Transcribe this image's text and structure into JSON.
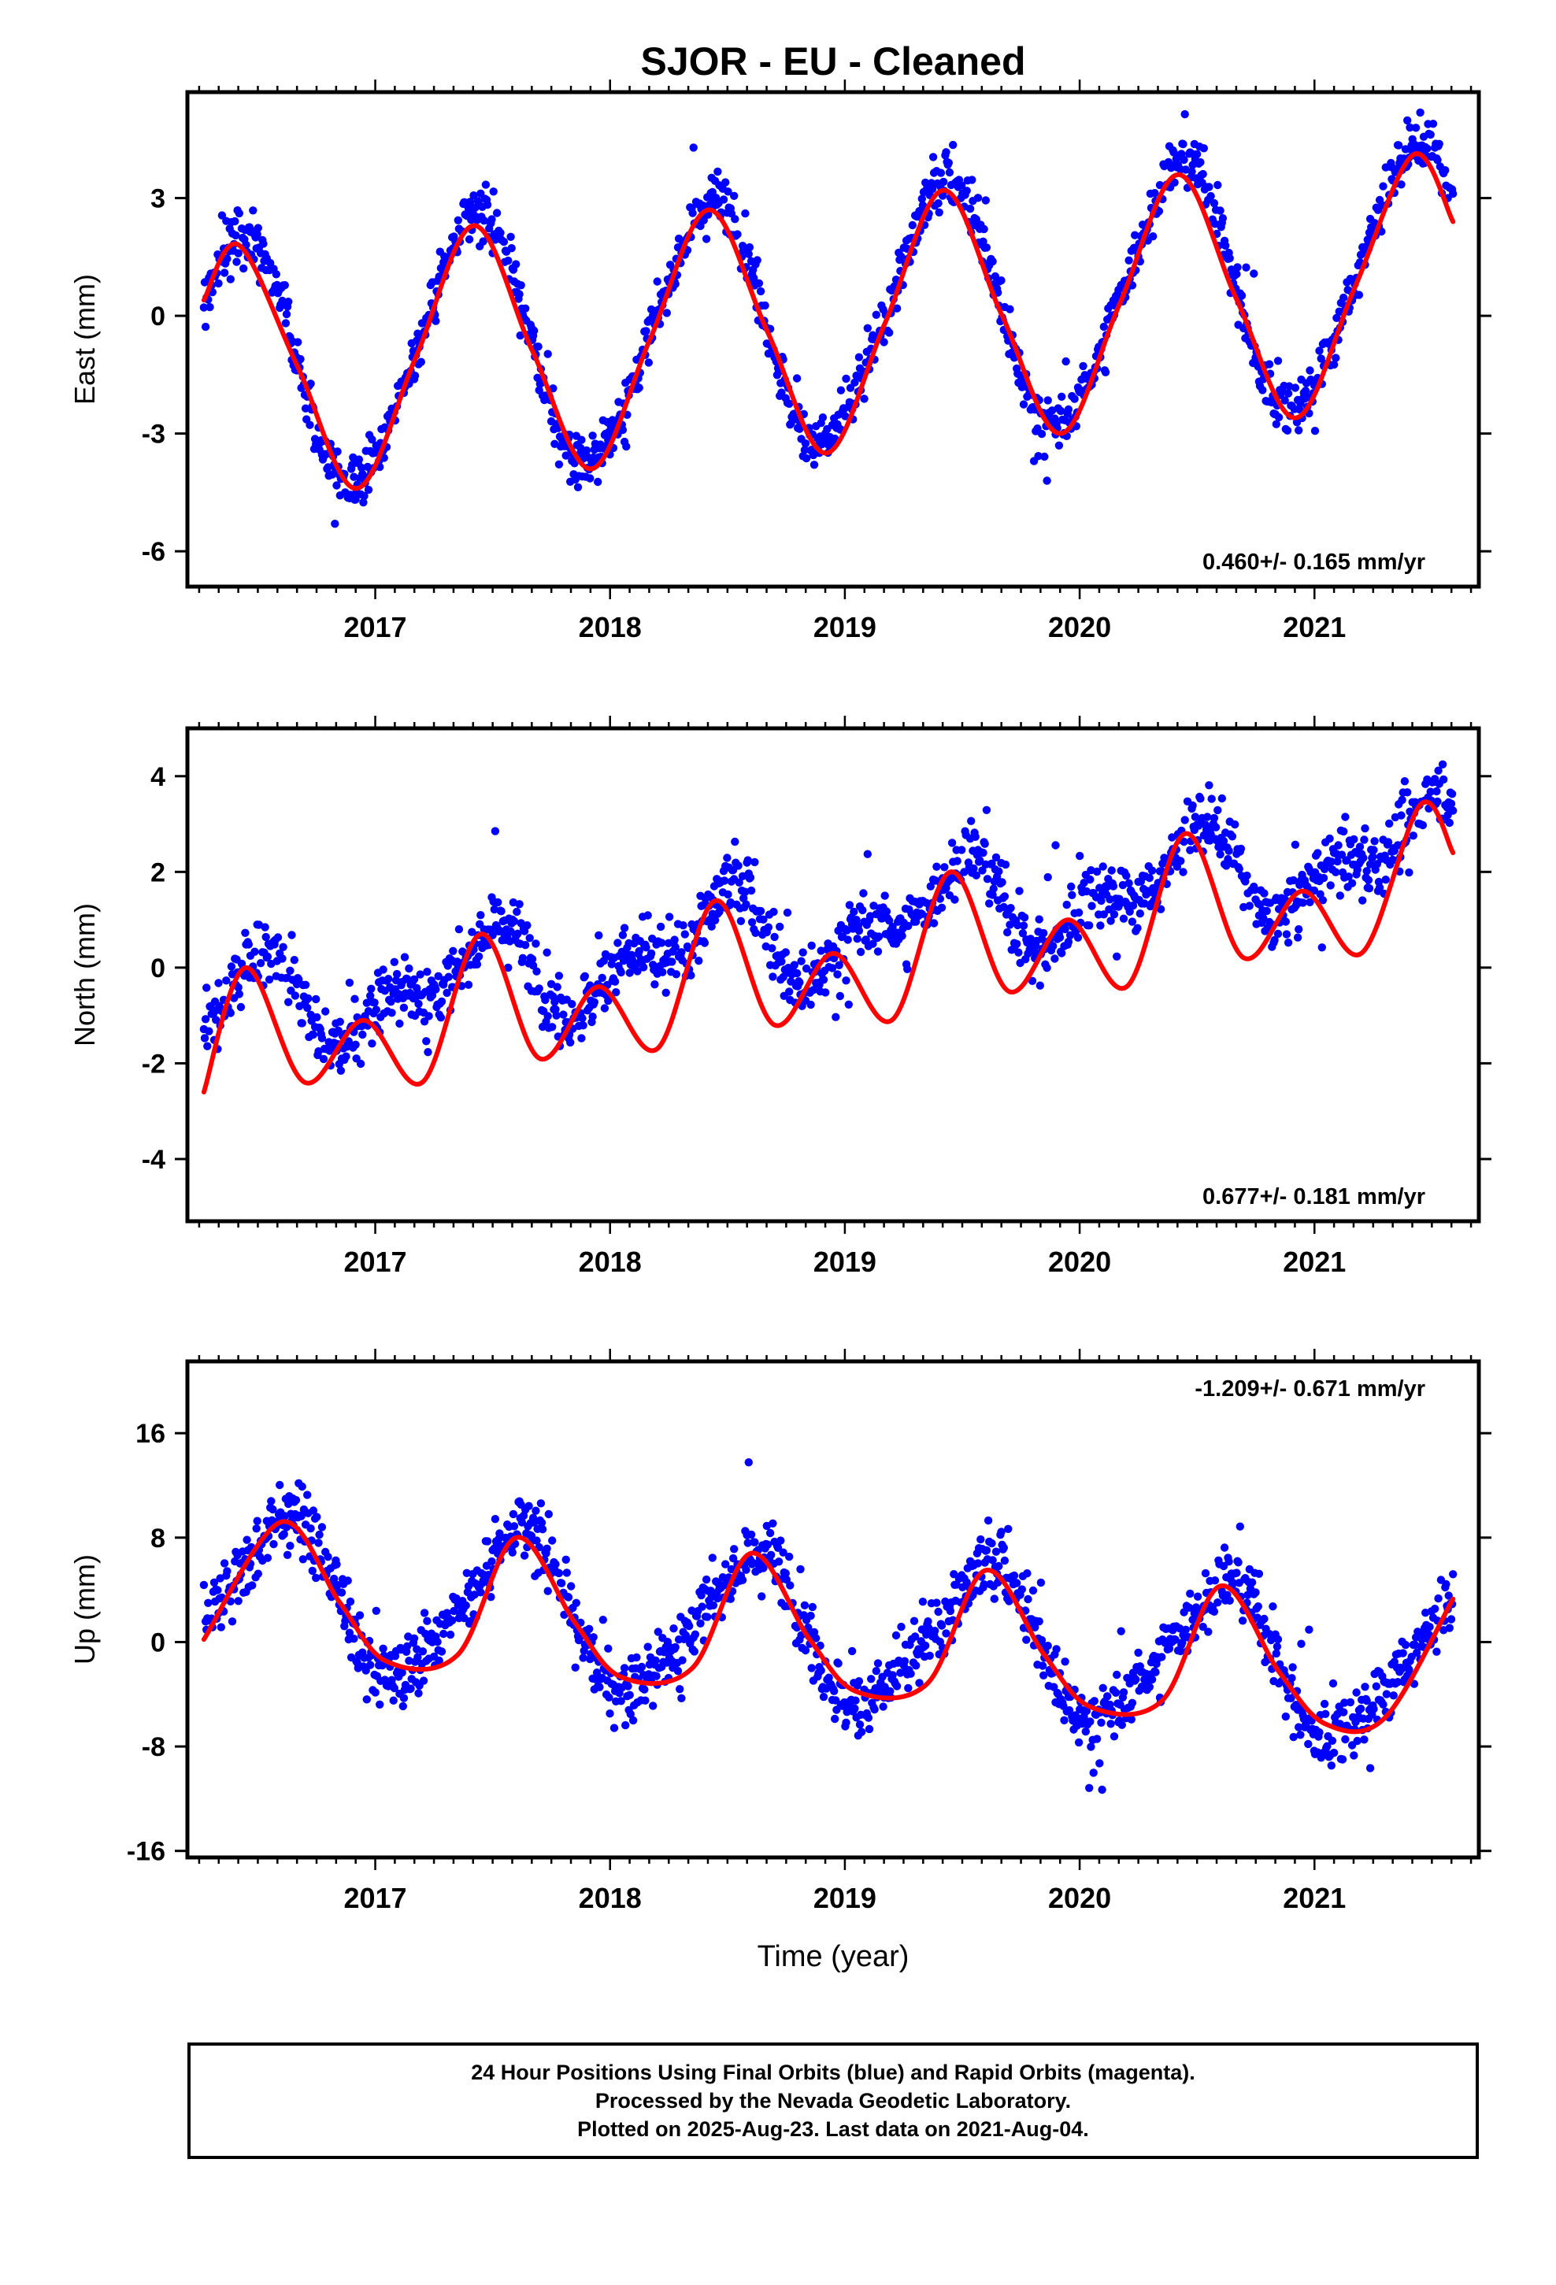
{
  "title": "SJOR  - EU - Cleaned",
  "colors": {
    "points": "#0000ff",
    "fit": "#ff0000",
    "frame": "#000000"
  },
  "chart_data": [
    {
      "type": "scatter",
      "ylabel": "East (mm)",
      "xlim": [
        2016.2,
        2021.7
      ],
      "ylim": [
        -6.9,
        5.7
      ],
      "yticks": [
        3,
        0,
        -3,
        -6
      ],
      "ytick_labels": [
        "3",
        "0",
        "-3",
        "-6"
      ],
      "xticks": [
        2017,
        2018,
        2019,
        2020,
        2021
      ],
      "xtick_labels": [
        "2017",
        "2018",
        "2019",
        "2020",
        "2021"
      ],
      "rate_label": "0.460+/- 0.165 mm/yr",
      "rate_position": "bottom-right",
      "series": [
        {
          "kind": "points",
          "color": "blue",
          "x_range": [
            2016.27,
            2021.59
          ],
          "trend": 0.46,
          "annual_amp": 3.2,
          "annual_peak": 2016.42,
          "semiannual_amp": 0.3,
          "offset": -1.3,
          "noise_sd": 0.85
        },
        {
          "kind": "fit",
          "color": "red",
          "x": [
            2016.27,
            2016.42,
            2016.67,
            2016.92,
            2017.17,
            2017.42,
            2017.67,
            2017.92,
            2018.17,
            2018.42,
            2018.67,
            2018.92,
            2019.17,
            2019.42,
            2019.67,
            2019.92,
            2020.17,
            2020.42,
            2020.67,
            2020.92,
            2021.17,
            2021.42,
            2021.59
          ],
          "y": [
            0.4,
            1.8,
            -1.3,
            -4.4,
            -1.1,
            2.3,
            -0.9,
            -3.9,
            -0.6,
            2.7,
            -0.4,
            -3.5,
            -0.2,
            3.2,
            0.0,
            -3.0,
            0.3,
            3.6,
            0.4,
            -2.6,
            0.7,
            4.1,
            2.4
          ]
        }
      ]
    },
    {
      "type": "scatter",
      "ylabel": "North (mm)",
      "xlim": [
        2016.2,
        2021.7
      ],
      "ylim": [
        -5.3,
        5.0
      ],
      "yticks": [
        4,
        2,
        0,
        -2,
        -4
      ],
      "ytick_labels": [
        "4",
        "2",
        "0",
        "-2",
        "-4"
      ],
      "xticks": [
        2017,
        2018,
        2019,
        2020,
        2021
      ],
      "xtick_labels": [
        "2017",
        "2018",
        "2019",
        "2020",
        "2021"
      ],
      "rate_label": "0.677+/- 0.181 mm/yr",
      "rate_position": "bottom-right",
      "series": [
        {
          "kind": "points",
          "color": "blue",
          "x_range": [
            2016.27,
            2021.59
          ],
          "trend": 0.677,
          "annual_amp": 0.75,
          "annual_peak": 2016.45,
          "semiannual_amp": 0.55,
          "offset": -1.0,
          "noise_sd": 0.85
        },
        {
          "kind": "fit",
          "color": "red",
          "x": [
            2016.27,
            2016.45,
            2016.7,
            2016.95,
            2017.2,
            2017.45,
            2017.7,
            2017.95,
            2018.2,
            2018.45,
            2018.7,
            2018.95,
            2019.2,
            2019.45,
            2019.7,
            2019.95,
            2020.2,
            2020.45,
            2020.7,
            2020.95,
            2021.2,
            2021.45,
            2021.59
          ],
          "y": [
            -2.6,
            0.0,
            -2.4,
            -1.1,
            -2.4,
            0.7,
            -1.9,
            -0.4,
            -1.7,
            1.4,
            -1.2,
            0.3,
            -1.1,
            2.0,
            -0.5,
            1.0,
            -0.4,
            2.8,
            0.2,
            1.6,
            0.3,
            3.4,
            2.4
          ]
        }
      ]
    },
    {
      "type": "scatter",
      "ylabel": "Up (mm)",
      "xlabel": "Time (year)",
      "xlim": [
        2016.2,
        2021.7
      ],
      "ylim": [
        -16.5,
        21.5
      ],
      "yticks": [
        16,
        8,
        0,
        -8,
        -16
      ],
      "ytick_labels": [
        "16",
        "8",
        "0",
        "-8",
        "-16"
      ],
      "xticks": [
        2017,
        2018,
        2019,
        2020,
        2021
      ],
      "xtick_labels": [
        "2017",
        "2018",
        "2019",
        "2020",
        "2021"
      ],
      "rate_label": "-1.209+/- 0.671 mm/yr",
      "rate_position": "top-right",
      "series": [
        {
          "kind": "points",
          "color": "blue",
          "x_range": [
            2016.27,
            2021.59
          ],
          "trend": -1.209,
          "annual_amp": 5.5,
          "annual_peak": 2016.6,
          "semiannual_amp": 1.0,
          "offset": 4.0,
          "noise_sd": 3.2
        },
        {
          "kind": "fit",
          "color": "red",
          "x": [
            2016.27,
            2016.6,
            2016.85,
            2017.05,
            2017.35,
            2017.6,
            2017.85,
            2018.05,
            2018.35,
            2018.6,
            2018.85,
            2019.05,
            2019.35,
            2019.6,
            2019.85,
            2020.05,
            2020.35,
            2020.6,
            2020.85,
            2021.05,
            2021.3,
            2021.59
          ],
          "y": [
            0.2,
            9.2,
            3.0,
            -1.5,
            -1.0,
            8.0,
            1.5,
            -2.7,
            -2.0,
            6.8,
            0.2,
            -3.8,
            -3.2,
            5.5,
            -1.0,
            -5.0,
            -4.5,
            4.3,
            -2.3,
            -6.3,
            -5.8,
            3.3
          ]
        }
      ]
    }
  ],
  "footer": {
    "line1": "24 Hour Positions Using Final Orbits (blue) and Rapid Orbits (magenta).",
    "line2": "Processed by the Nevada Geodetic Laboratory.",
    "line3": "Plotted on 2025-Aug-23. Last data on 2021-Aug-04."
  }
}
